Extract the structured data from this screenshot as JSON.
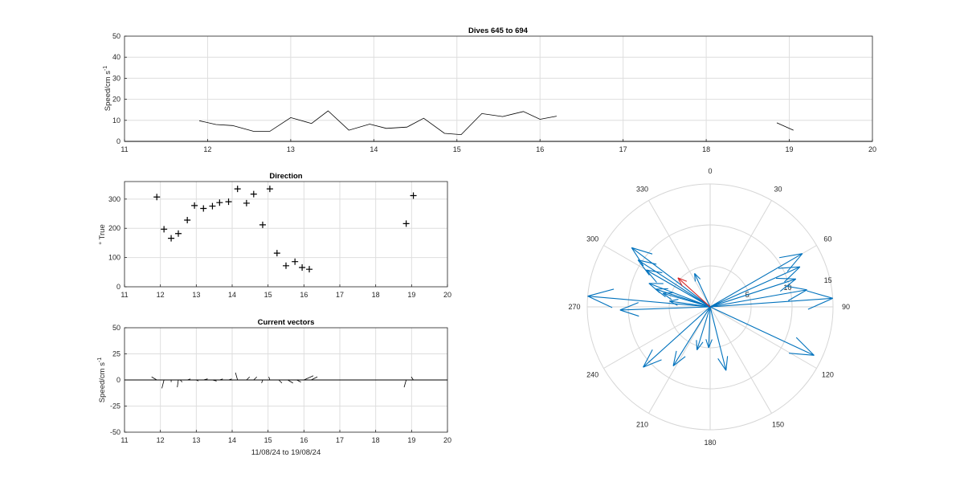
{
  "figure": {
    "top_title": "Dives 645 to 694",
    "top_ylabel": "Speed/cm s",
    "top_ylabel_sup": "-1",
    "dir_title": "Direction",
    "dir_ylabel": "° True",
    "vec_title": "Current vectors",
    "vec_ylabel": "Speed/cm s",
    "vec_ylabel_sup": "-1",
    "vec_xlabel": "11/08/24 to 19/08/24",
    "colors": {
      "line": "#000000",
      "arrow": "#0072bd",
      "latest_arrow": "#d62728",
      "grid": "#dedede"
    }
  },
  "chart_data": [
    {
      "type": "line",
      "title": "Dives 645 to 694",
      "ylabel": "Speed/cm s-1",
      "xlim": [
        11,
        20
      ],
      "ylim": [
        0,
        50
      ],
      "xticks": [
        11,
        12,
        13,
        14,
        15,
        16,
        17,
        18,
        19,
        20
      ],
      "yticks": [
        0,
        10,
        20,
        30,
        40,
        50
      ],
      "grid": true,
      "segments": [
        [
          [
            11.9,
            9.8
          ],
          [
            12.1,
            8
          ],
          [
            12.3,
            7.5
          ],
          [
            12.55,
            4.8
          ],
          [
            12.75,
            4.8
          ],
          [
            13.0,
            11.3
          ],
          [
            13.25,
            8.5
          ],
          [
            13.45,
            14.5
          ],
          [
            13.7,
            5.3
          ],
          [
            13.95,
            8.2
          ],
          [
            14.15,
            6.2
          ],
          [
            14.4,
            6.8
          ],
          [
            14.6,
            11
          ],
          [
            14.85,
            3.8
          ],
          [
            15.05,
            3.2
          ],
          [
            15.3,
            13.2
          ],
          [
            15.55,
            11.8
          ],
          [
            15.8,
            14.2
          ],
          [
            16.0,
            10.5
          ],
          [
            16.2,
            12
          ]
        ],
        [
          [
            18.85,
            8.8
          ],
          [
            19.05,
            5.3
          ]
        ]
      ]
    },
    {
      "type": "scatter",
      "title": "Direction",
      "ylabel": "° True",
      "marker": "+",
      "xlim": [
        11,
        20
      ],
      "ylim": [
        0,
        360
      ],
      "xticks": [
        11,
        12,
        13,
        14,
        15,
        16,
        17,
        18,
        19,
        20
      ],
      "yticks": [
        0,
        100,
        200,
        300
      ],
      "grid": true,
      "points": [
        [
          11.9,
          307
        ],
        [
          12.1,
          197
        ],
        [
          12.3,
          166
        ],
        [
          12.5,
          182
        ],
        [
          12.75,
          228
        ],
        [
          12.95,
          278
        ],
        [
          13.2,
          268
        ],
        [
          13.45,
          276
        ],
        [
          13.65,
          288
        ],
        [
          13.9,
          291
        ],
        [
          14.15,
          335
        ],
        [
          14.4,
          286
        ],
        [
          14.6,
          317
        ],
        [
          14.85,
          212
        ],
        [
          15.05,
          335
        ],
        [
          15.25,
          115
        ],
        [
          15.5,
          72
        ],
        [
          15.75,
          86
        ],
        [
          15.95,
          66
        ],
        [
          16.15,
          60
        ],
        [
          18.85,
          216
        ],
        [
          19.05,
          312
        ]
      ]
    },
    {
      "type": "line",
      "title": "Current vectors",
      "ylabel": "Speed/cm s-1",
      "xlabel": "11/08/24 to 19/08/24",
      "xlim": [
        11,
        20
      ],
      "ylim": [
        -50,
        50
      ],
      "xticks": [
        11,
        12,
        13,
        14,
        15,
        16,
        17,
        18,
        19,
        20
      ],
      "yticks": [
        -50,
        -25,
        0,
        25,
        50
      ],
      "grid": true,
      "sticks": [
        [
          11.9,
          -5,
          3
        ],
        [
          12.1,
          -2,
          -8
        ],
        [
          12.3,
          0,
          -2
        ],
        [
          12.5,
          -1,
          -7
        ],
        [
          12.55,
          2,
          -2
        ],
        [
          12.75,
          3,
          1
        ],
        [
          13.0,
          2,
          -1
        ],
        [
          13.2,
          4,
          1
        ],
        [
          13.45,
          4,
          -1
        ],
        [
          13.65,
          3,
          1
        ],
        [
          13.9,
          3,
          1
        ],
        [
          14.15,
          -2,
          7
        ],
        [
          14.4,
          3,
          3
        ],
        [
          14.6,
          3,
          3
        ],
        [
          14.85,
          -1,
          -3
        ],
        [
          15.05,
          -1,
          3
        ],
        [
          15.3,
          3,
          -3
        ],
        [
          15.55,
          5,
          -3
        ],
        [
          15.8,
          4,
          -2
        ],
        [
          16.0,
          9,
          4
        ],
        [
          16.2,
          6,
          3
        ],
        [
          18.85,
          -2,
          -7
        ],
        [
          19.05,
          -2,
          3
        ]
      ]
    },
    {
      "type": "scatter",
      "subtype": "compass",
      "r_ticks": [
        5,
        10,
        15
      ],
      "theta_labels": [
        "0",
        "30",
        "60",
        "90",
        "120",
        "150",
        "180",
        "210",
        "240",
        "270",
        "300",
        "330"
      ],
      "vectors": [
        {
          "bearing": 307,
          "speed": 12
        },
        {
          "bearing": 300,
          "speed": 9
        },
        {
          "bearing": 303,
          "speed": 10.5
        },
        {
          "bearing": 291,
          "speed": 8
        },
        {
          "bearing": 288,
          "speed": 7
        },
        {
          "bearing": 286,
          "speed": 6
        },
        {
          "bearing": 278,
          "speed": 5
        },
        {
          "bearing": 275,
          "speed": 15
        },
        {
          "bearing": 268,
          "speed": 11
        },
        {
          "bearing": 228,
          "speed": 11
        },
        {
          "bearing": 212,
          "speed": 8.5
        },
        {
          "bearing": 197,
          "speed": 5.5
        },
        {
          "bearing": 182,
          "speed": 5
        },
        {
          "bearing": 166,
          "speed": 8
        },
        {
          "bearing": 115,
          "speed": 14
        },
        {
          "bearing": 86,
          "speed": 15
        },
        {
          "bearing": 80,
          "speed": 12
        },
        {
          "bearing": 72,
          "speed": 11
        },
        {
          "bearing": 66,
          "speed": 12
        },
        {
          "bearing": 60,
          "speed": 13
        },
        {
          "bearing": 335,
          "speed": 4.5
        },
        {
          "bearing": 312,
          "speed": 5.3,
          "latest": true
        }
      ]
    }
  ]
}
